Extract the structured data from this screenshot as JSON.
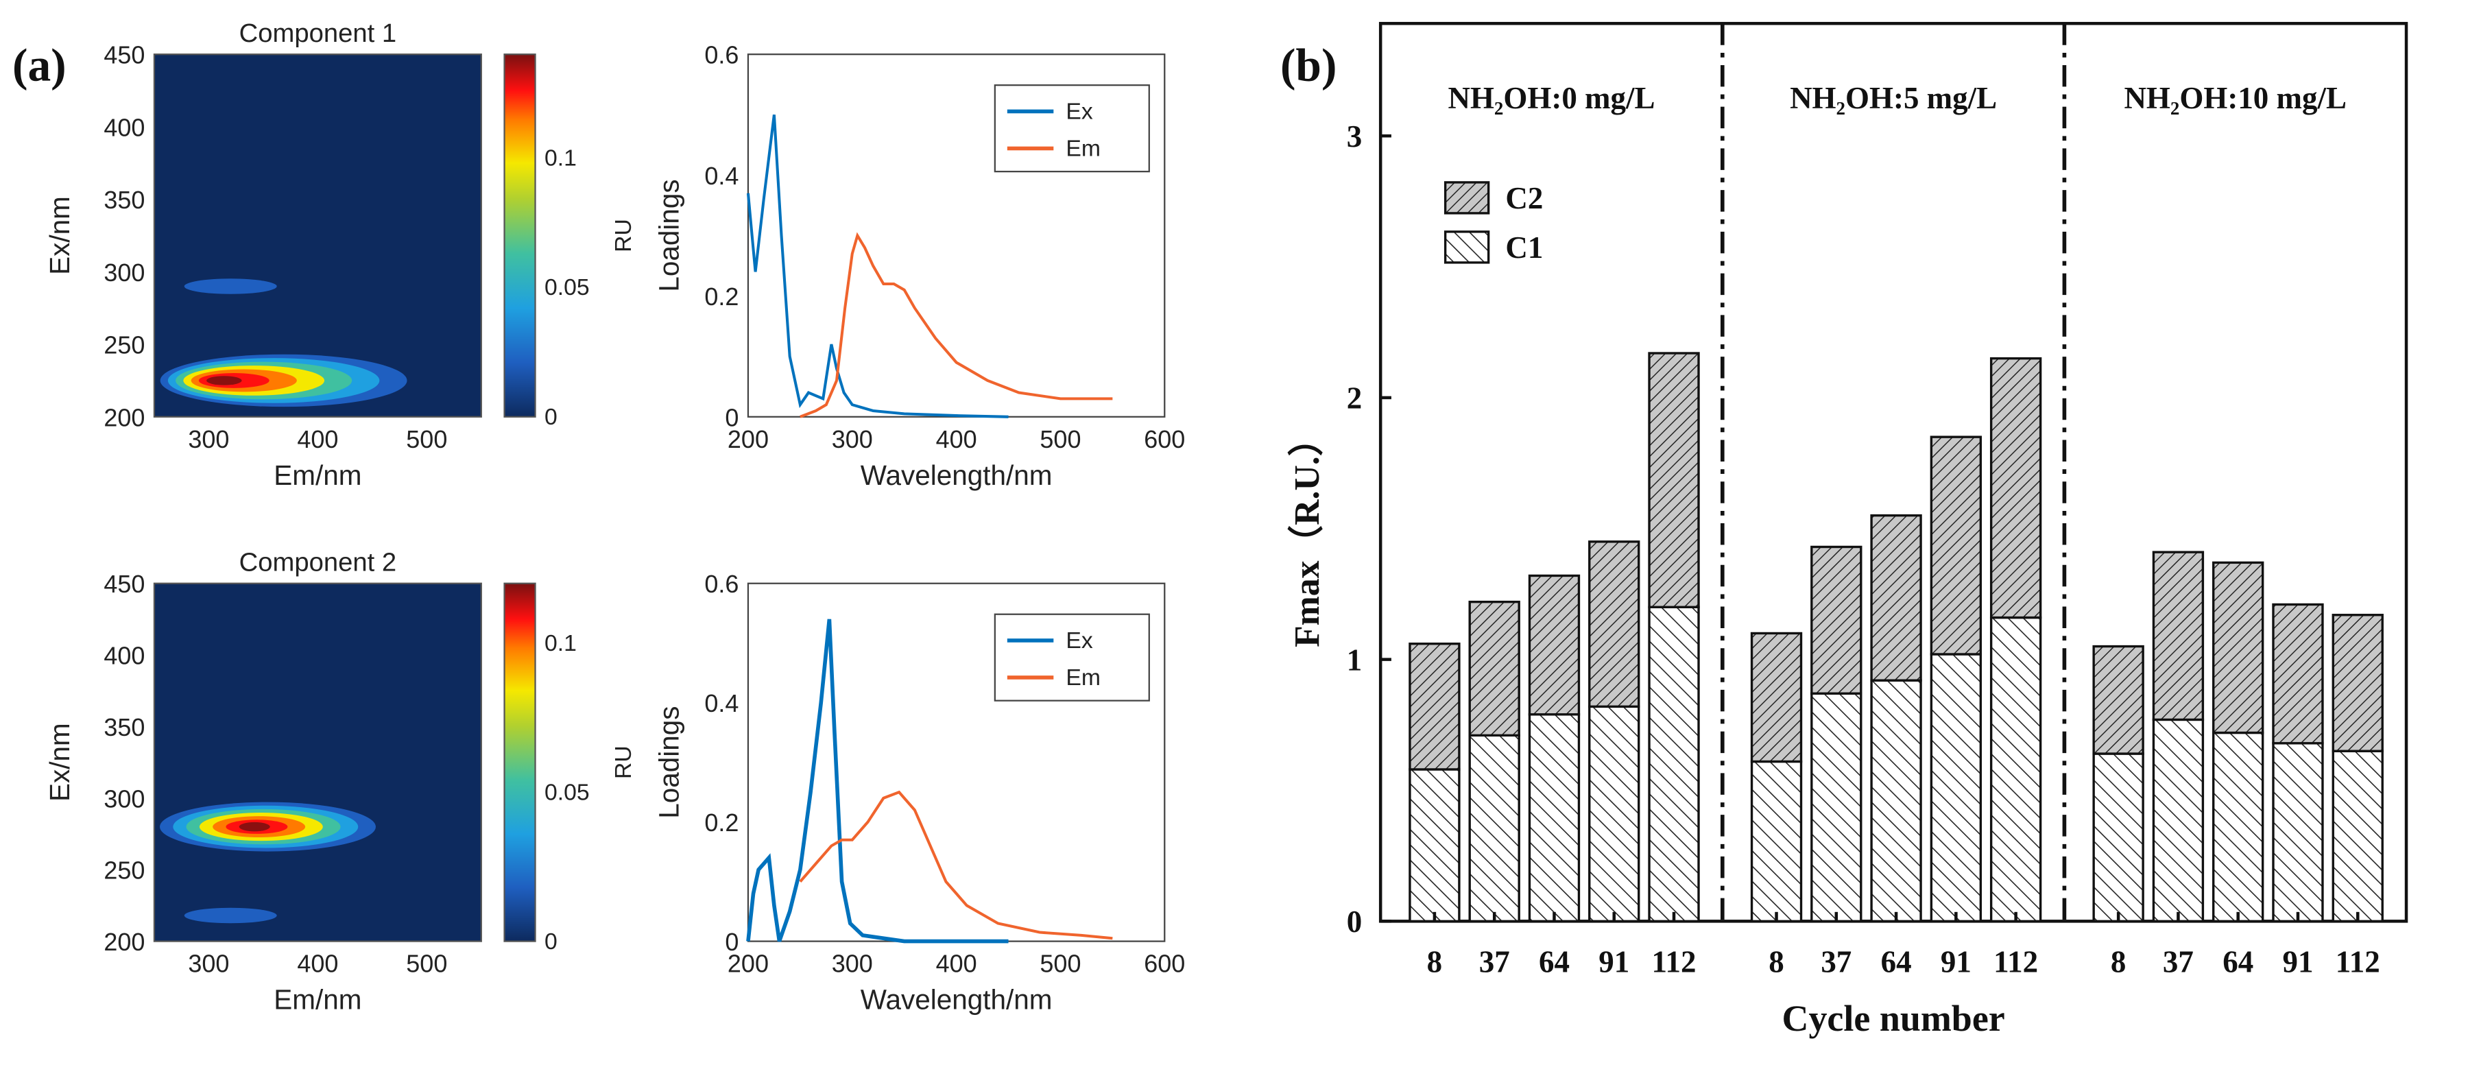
{
  "panel_labels": {
    "a": "(a)",
    "b": "(b)"
  },
  "chart_data": [
    {
      "type": "heatmap",
      "title": "Component 1",
      "xlabel": "Em/nm",
      "ylabel": "Ex/nm",
      "colorbar_label": "RU",
      "xlim": [
        250,
        550
      ],
      "ylim": [
        200,
        450
      ],
      "xticks": [
        300,
        400,
        500
      ],
      "yticks": [
        200,
        250,
        300,
        350,
        400,
        450
      ],
      "colorbar_ticks": [
        0,
        0.05,
        0.1
      ],
      "colorbar_range": [
        0,
        0.14
      ],
      "peaks": [
        {
          "em": 305,
          "ex": 225,
          "value": 0.14
        },
        {
          "em": 320,
          "ex": 290,
          "value": 0.015
        }
      ]
    },
    {
      "type": "line",
      "xlabel": "Wavelength/nm",
      "ylabel": "Loadings",
      "xlim": [
        200,
        600
      ],
      "ylim": [
        0,
        0.6
      ],
      "xticks": [
        200,
        300,
        400,
        500,
        600
      ],
      "yticks": [
        0,
        0.2,
        0.4,
        0.6
      ],
      "legend": "top-right",
      "series": [
        {
          "name": "Ex",
          "color": "#0072BD",
          "x": [
            200,
            207,
            215,
            225,
            232,
            240,
            250,
            258,
            265,
            272,
            280,
            285,
            292,
            300,
            320,
            350,
            400,
            450
          ],
          "y": [
            0.37,
            0.24,
            0.36,
            0.5,
            0.3,
            0.1,
            0.02,
            0.04,
            0.035,
            0.03,
            0.12,
            0.08,
            0.04,
            0.02,
            0.01,
            0.005,
            0.002,
            0
          ]
        },
        {
          "name": "Em",
          "color": "#F0642D",
          "x": [
            250,
            265,
            275,
            285,
            293,
            300,
            305,
            312,
            320,
            330,
            340,
            350,
            360,
            380,
            400,
            430,
            460,
            500,
            550
          ],
          "y": [
            0,
            0.01,
            0.02,
            0.06,
            0.18,
            0.27,
            0.3,
            0.28,
            0.25,
            0.22,
            0.22,
            0.21,
            0.18,
            0.13,
            0.09,
            0.06,
            0.04,
            0.03,
            0.03
          ]
        }
      ]
    },
    {
      "type": "heatmap",
      "title": "Component 2",
      "xlabel": "Em/nm",
      "ylabel": "Ex/nm",
      "colorbar_label": "RU",
      "xlim": [
        250,
        550
      ],
      "ylim": [
        200,
        450
      ],
      "xticks": [
        300,
        400,
        500
      ],
      "yticks": [
        200,
        250,
        300,
        350,
        400,
        450
      ],
      "colorbar_ticks": [
        0,
        0.05,
        0.1
      ],
      "colorbar_range": [
        0,
        0.12
      ],
      "peaks": [
        {
          "em": 340,
          "ex": 280,
          "value": 0.12
        },
        {
          "em": 320,
          "ex": 218,
          "value": 0.01
        }
      ]
    },
    {
      "type": "line",
      "xlabel": "Wavelength/nm",
      "ylabel": "Loadings",
      "xlim": [
        200,
        600
      ],
      "ylim": [
        0,
        0.6
      ],
      "xticks": [
        200,
        300,
        400,
        500,
        600
      ],
      "yticks": [
        0,
        0.2,
        0.4,
        0.6
      ],
      "legend": "top-right",
      "series": [
        {
          "name": "Ex",
          "color": "#0072BD",
          "x": [
            200,
            205,
            210,
            220,
            225,
            230,
            240,
            250,
            260,
            270,
            278,
            283,
            290,
            298,
            310,
            350,
            450
          ],
          "y": [
            0,
            0.08,
            0.12,
            0.14,
            0.06,
            0,
            0.05,
            0.12,
            0.25,
            0.4,
            0.54,
            0.35,
            0.1,
            0.03,
            0.01,
            0,
            0
          ]
        },
        {
          "name": "Em",
          "color": "#F0642D",
          "x": [
            250,
            265,
            280,
            290,
            300,
            315,
            330,
            345,
            360,
            375,
            390,
            410,
            440,
            480,
            520,
            550
          ],
          "y": [
            0.1,
            0.13,
            0.16,
            0.17,
            0.17,
            0.2,
            0.24,
            0.25,
            0.22,
            0.16,
            0.1,
            0.06,
            0.03,
            0.015,
            0.01,
            0.005
          ]
        }
      ]
    },
    {
      "type": "bar",
      "stacked": true,
      "xlabel": "Cycle number",
      "ylabel": "Fmax（R.U.）",
      "ylim": [
        0,
        3.2
      ],
      "yticks": [
        0,
        1,
        2,
        3
      ],
      "legend": "top-left",
      "groups": [
        {
          "label": "NH₂OH:0 mg/L",
          "categories": [
            "8",
            "37",
            "64",
            "91",
            "112"
          ],
          "C1": [
            0.58,
            0.71,
            0.79,
            0.82,
            1.2
          ],
          "C2": [
            0.48,
            0.51,
            0.53,
            0.63,
            0.97
          ]
        },
        {
          "label": "NH₂OH:5 mg/L",
          "categories": [
            "8",
            "37",
            "64",
            "91",
            "112"
          ],
          "C1": [
            0.61,
            0.87,
            0.92,
            1.02,
            1.16
          ],
          "C2": [
            0.49,
            0.56,
            0.63,
            0.83,
            0.99
          ]
        },
        {
          "label": "NH₂OH:10 mg/L",
          "categories": [
            "8",
            "37",
            "64",
            "91",
            "112"
          ],
          "C1": [
            0.64,
            0.77,
            0.72,
            0.68,
            0.65
          ],
          "C2": [
            0.41,
            0.64,
            0.65,
            0.53,
            0.52
          ]
        }
      ],
      "series": [
        {
          "name": "C2"
        },
        {
          "name": "C1"
        }
      ]
    }
  ]
}
